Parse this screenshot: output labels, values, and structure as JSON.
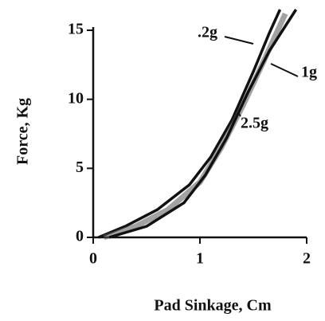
{
  "chart_data": {
    "type": "line",
    "xlabel": "Pad Sinkage, Cm",
    "ylabel": "Force, Kg",
    "xlim": [
      0,
      2
    ],
    "xticks": [
      0,
      1,
      2
    ],
    "ylim": [
      0,
      16.5
    ],
    "yticks": [
      0,
      5,
      10,
      15
    ],
    "grid": false,
    "series": [
      {
        "name": ".2g",
        "color": "#111111",
        "x": [
          0.05,
          0.3,
          0.6,
          0.9,
          1.1,
          1.3,
          1.5,
          1.65,
          1.75
        ],
        "values": [
          0,
          0.8,
          2,
          3.8,
          5.8,
          8.5,
          12,
          14.8,
          16.5
        ]
      },
      {
        "name": "1g",
        "color": "#555555",
        "x": [
          0.1,
          0.4,
          0.7,
          1.0,
          1.2,
          1.4,
          1.6,
          1.8
        ],
        "values": [
          0,
          0.8,
          2,
          4,
          6.5,
          9.5,
          12.8,
          16.2
        ]
      },
      {
        "name": "2.5g",
        "color": "#111111",
        "x": [
          0.15,
          0.5,
          0.85,
          1.05,
          1.25,
          1.45,
          1.65,
          1.9
        ],
        "values": [
          0,
          0.8,
          2.5,
          4.5,
          7.2,
          10.5,
          13.5,
          16.5
        ]
      }
    ]
  }
}
